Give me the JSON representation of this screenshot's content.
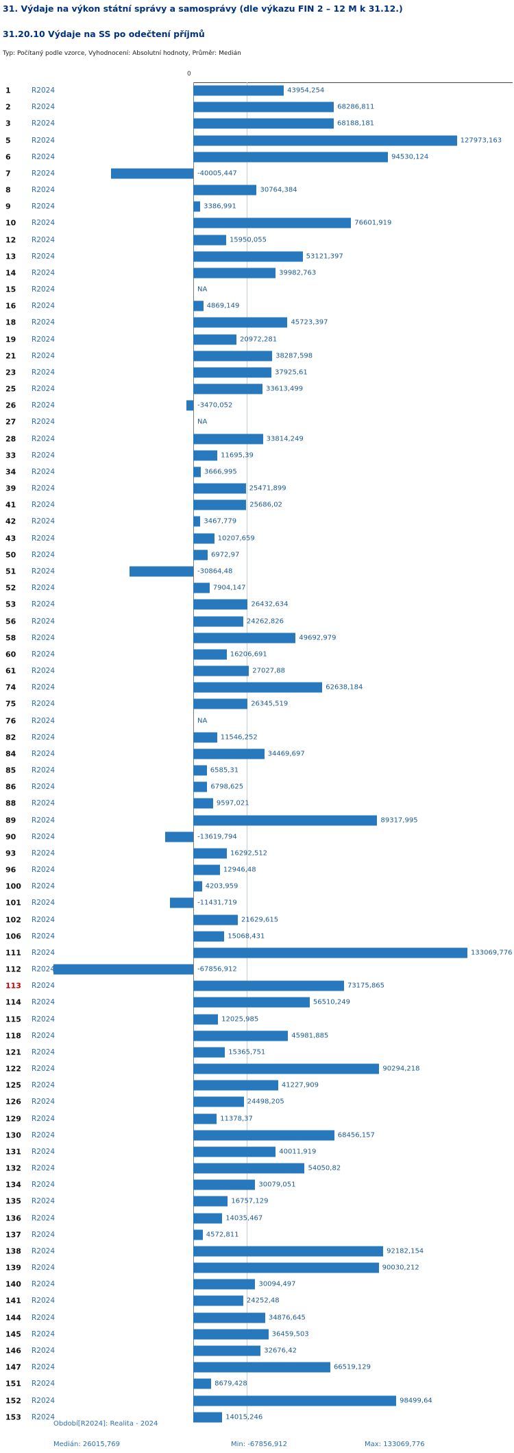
{
  "header": {
    "title": "31. Výdaje na výkon státní správy a samosprávy (dle výkazu FIN 2 – 12 M k 31.12.)",
    "subtitle": "31.20.10 Výdaje na SS po odečtení příjmů",
    "meta": "Typ: Počítaný podle vzorce, Vyhodnocení: Absolutní hodnoty, Průměr: Medián"
  },
  "chart_data": {
    "type": "bar",
    "orientation": "horizontal",
    "series_label": "R2024",
    "zero_label": "0",
    "xlim": [
      -67856.912,
      133069.776
    ],
    "median": 26015.769,
    "grid": "median-line-only",
    "highlighted_category": "113",
    "categories": [
      "1",
      "2",
      "3",
      "5",
      "6",
      "7",
      "8",
      "9",
      "10",
      "12",
      "13",
      "14",
      "15",
      "16",
      "18",
      "19",
      "21",
      "23",
      "25",
      "26",
      "27",
      "28",
      "33",
      "34",
      "39",
      "41",
      "42",
      "43",
      "50",
      "51",
      "52",
      "53",
      "56",
      "58",
      "60",
      "61",
      "74",
      "75",
      "76",
      "82",
      "84",
      "85",
      "86",
      "88",
      "89",
      "90",
      "93",
      "96",
      "100",
      "101",
      "102",
      "106",
      "111",
      "112",
      "113",
      "114",
      "115",
      "118",
      "121",
      "122",
      "125",
      "126",
      "129",
      "130",
      "131",
      "132",
      "134",
      "135",
      "136",
      "137",
      "138",
      "139",
      "140",
      "141",
      "144",
      "145",
      "146",
      "147",
      "151",
      "152",
      "153"
    ],
    "values": [
      43954.254,
      68286.811,
      68188.181,
      127973.163,
      94530.124,
      -40005.447,
      30764.384,
      3386.991,
      76601.919,
      15950.055,
      53121.397,
      39982.763,
      null,
      4869.149,
      45723.397,
      20972.281,
      38287.598,
      37925.61,
      33613.499,
      -3470.052,
      null,
      33814.249,
      11695.39,
      3666.995,
      25471.899,
      25686.02,
      3467.779,
      10207.659,
      6972.97,
      -30864.48,
      7904.147,
      26432.634,
      24262.826,
      49692.979,
      16206.691,
      27027.88,
      62638.184,
      26345.519,
      null,
      11546.252,
      34469.697,
      6585.31,
      6798.625,
      9597.021,
      89317.995,
      -13619.794,
      16292.512,
      12946.48,
      4203.959,
      -11431.719,
      21629.615,
      15068.431,
      133069.776,
      -67856.912,
      73175.865,
      56510.249,
      12025.985,
      45981.885,
      15365.751,
      90294.218,
      41227.909,
      24498.205,
      11378.37,
      68456.157,
      40011.919,
      54050.82,
      30079.051,
      16757.129,
      14035.467,
      4572.811,
      92182.154,
      90030.212,
      30094.497,
      24252.48,
      34876.645,
      36459.503,
      32676.42,
      66519.129,
      8679.428,
      98499.64,
      14015.246
    ],
    "value_labels": [
      "43954,254",
      "68286,811",
      "68188,181",
      "127973,163",
      "94530,124",
      "-40005,447",
      "30764,384",
      "3386,991",
      "76601,919",
      "15950,055",
      "53121,397",
      "39982,763",
      "NA",
      "4869,149",
      "45723,397",
      "20972,281",
      "38287,598",
      "37925,61",
      "33613,499",
      "-3470,052",
      "NA",
      "33814,249",
      "11695,39",
      "3666,995",
      "25471,899",
      "25686,02",
      "3467,779",
      "10207,659",
      "6972,97",
      "-30864,48",
      "7904,147",
      "26432,634",
      "24262,826",
      "49692,979",
      "16206,691",
      "27027,88",
      "62638,184",
      "26345,519",
      "NA",
      "11546,252",
      "34469,697",
      "6585,31",
      "6798,625",
      "9597,021",
      "89317,995",
      "-13619,794",
      "16292,512",
      "12946,48",
      "4203,959",
      "-11431,719",
      "21629,615",
      "15068,431",
      "133069,776",
      "-67856,912",
      "73175,865",
      "56510,249",
      "12025,985",
      "45981,885",
      "15365,751",
      "90294,218",
      "41227,909",
      "24498,205",
      "11378,37",
      "68456,157",
      "40011,919",
      "54050,82",
      "30079,051",
      "16757,129",
      "14035,467",
      "4572,811",
      "92182,154",
      "90030,212",
      "30094,497",
      "24252,48",
      "34876,645",
      "36459,503",
      "32676,42",
      "66519,129",
      "8679,428",
      "98499,64",
      "14015,246"
    ]
  },
  "footer": {
    "period": "Období[R2024]: Realita - 2024",
    "median": "Medián: 26015,769",
    "min": "Min: -67856,912",
    "max": "Max: 133069,776"
  },
  "colors": {
    "title": "#003080",
    "bar": "#2878bd",
    "link": "#2a6db5",
    "value_text": "#1a5a96",
    "row_number": "#111111",
    "highlight": "#cc0000",
    "median_line": "#c3cdd6",
    "axis": "#444444",
    "footer_text": "#2a6db5"
  }
}
